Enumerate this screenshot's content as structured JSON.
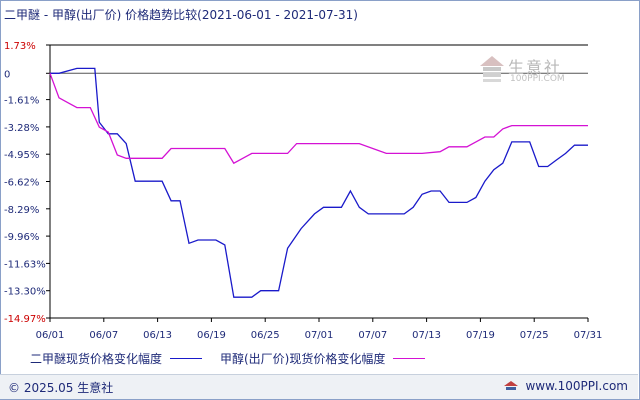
{
  "chart_data": {
    "type": "line",
    "title": "二甲醚 - 甲醇(出厂价) 价格趋势比较(2021-06-01 - 2021-07-31)",
    "x_tick_labels": [
      "06/01",
      "06/07",
      "06/13",
      "06/19",
      "06/25",
      "07/01",
      "07/07",
      "07/13",
      "07/19",
      "07/25",
      "07/31"
    ],
    "y_tick_labels": [
      "1.73%",
      "0",
      "-1.61%",
      "-3.28%",
      "-4.95%",
      "-6.62%",
      "-8.29%",
      "-9.96%",
      "-11.63%",
      "-13.30%",
      "-14.97%"
    ],
    "y_ticks": [
      1.73,
      0,
      -1.61,
      -3.28,
      -4.95,
      -6.62,
      -8.29,
      -9.96,
      -11.63,
      -13.3,
      -14.97
    ],
    "ylim": [
      -14.97,
      1.73
    ],
    "xlim": [
      0,
      60
    ],
    "grid": false,
    "legend_position": "bottom",
    "series": [
      {
        "name": "二甲醚现货价格变化幅度",
        "color": "#1a1aca",
        "points": [
          [
            0,
            0
          ],
          [
            1,
            0
          ],
          [
            3,
            0.3
          ],
          [
            5,
            0.3
          ],
          [
            5.5,
            -3.0
          ],
          [
            6.5,
            -3.7
          ],
          [
            7.5,
            -3.7
          ],
          [
            8.5,
            -4.3
          ],
          [
            9.5,
            -6.6
          ],
          [
            12.5,
            -6.6
          ],
          [
            13.5,
            -7.8
          ],
          [
            14.5,
            -7.8
          ],
          [
            15.5,
            -10.4
          ],
          [
            16.5,
            -10.2
          ],
          [
            18.5,
            -10.2
          ],
          [
            19.5,
            -10.5
          ],
          [
            20.5,
            -13.7
          ],
          [
            22.5,
            -13.7
          ],
          [
            23.5,
            -13.3
          ],
          [
            25.5,
            -13.3
          ],
          [
            26.5,
            -10.7
          ],
          [
            28,
            -9.5
          ],
          [
            29.5,
            -8.6
          ],
          [
            30.5,
            -8.2
          ],
          [
            32.5,
            -8.2
          ],
          [
            33.5,
            -7.2
          ],
          [
            34.5,
            -8.2
          ],
          [
            35.5,
            -8.6
          ],
          [
            39.5,
            -8.6
          ],
          [
            40.5,
            -8.2
          ],
          [
            41.5,
            -7.4
          ],
          [
            42.5,
            -7.2
          ],
          [
            43.5,
            -7.2
          ],
          [
            44.5,
            -7.9
          ],
          [
            46.5,
            -7.9
          ],
          [
            47.5,
            -7.6
          ],
          [
            48.5,
            -6.6
          ],
          [
            49.5,
            -5.9
          ],
          [
            50.5,
            -5.5
          ],
          [
            51.5,
            -4.2
          ],
          [
            52.5,
            -4.2
          ],
          [
            53.5,
            -4.2
          ],
          [
            54.5,
            -5.7
          ],
          [
            55.5,
            -5.7
          ],
          [
            56.5,
            -5.3
          ],
          [
            57.5,
            -4.9
          ],
          [
            58.5,
            -4.4
          ],
          [
            60,
            -4.4
          ]
        ]
      },
      {
        "name": "甲醇(出厂价)现货价格变化幅度",
        "color": "#d412d4",
        "points": [
          [
            0,
            0
          ],
          [
            1,
            -1.5
          ],
          [
            2,
            -1.8
          ],
          [
            3,
            -2.1
          ],
          [
            4.5,
            -2.1
          ],
          [
            5.5,
            -3.3
          ],
          [
            6.5,
            -3.6
          ],
          [
            7.5,
            -5.0
          ],
          [
            8.5,
            -5.2
          ],
          [
            12.5,
            -5.2
          ],
          [
            13.5,
            -4.6
          ],
          [
            19.5,
            -4.6
          ],
          [
            20.5,
            -5.5
          ],
          [
            21.5,
            -5.2
          ],
          [
            22.5,
            -4.9
          ],
          [
            26.5,
            -4.9
          ],
          [
            27.5,
            -4.3
          ],
          [
            34.5,
            -4.3
          ],
          [
            36.5,
            -4.7
          ],
          [
            37.5,
            -4.9
          ],
          [
            41.5,
            -4.9
          ],
          [
            43.5,
            -4.8
          ],
          [
            44.5,
            -4.5
          ],
          [
            46.5,
            -4.5
          ],
          [
            47.5,
            -4.2
          ],
          [
            48.5,
            -3.9
          ],
          [
            49.5,
            -3.9
          ],
          [
            50.5,
            -3.4
          ],
          [
            51.5,
            -3.2
          ],
          [
            60,
            -3.2
          ]
        ]
      }
    ]
  },
  "legend": {
    "items": [
      {
        "label": "二甲醚现货价格变化幅度",
        "color": "#1a1aca"
      },
      {
        "label": "甲醇(出厂价)现货价格变化幅度",
        "color": "#d412d4"
      }
    ]
  },
  "watermark": {
    "text": "生意社",
    "sub": "100PPI.COM"
  },
  "footer": {
    "copyright": "© 2025.05 生意社",
    "site": "www.100PPI.com"
  }
}
